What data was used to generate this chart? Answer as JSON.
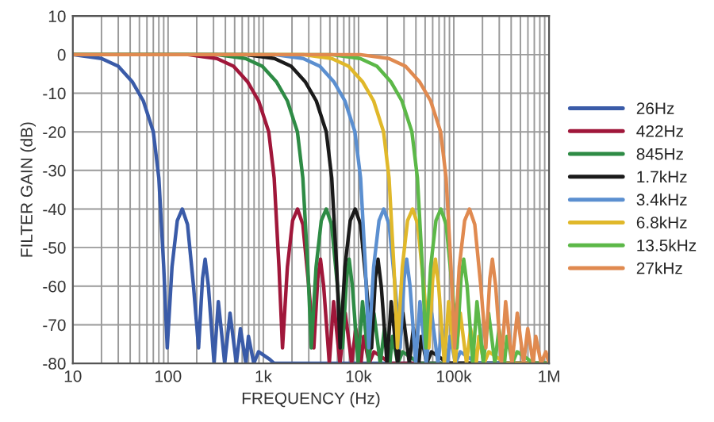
{
  "chart_data": {
    "type": "line",
    "xlabel": "FREQUENCY (Hz)",
    "ylabel": "FILTER GAIN (dB)",
    "log": "x",
    "grid": true,
    "legend": "right",
    "marker": "none",
    "line_style": "solid",
    "xlim": [
      10,
      1000000
    ],
    "xticks": [
      10,
      100,
      {
        "value": 1000,
        "label": "1k"
      },
      {
        "value": 10000,
        "label": "10k"
      },
      {
        "value": 100000,
        "label": "100k"
      },
      {
        "value": 1000000,
        "label": "1M"
      }
    ],
    "ylim": [
      -80,
      10
    ],
    "yticks": [
      -80,
      -70,
      -60,
      -50,
      -40,
      -30,
      -20,
      -10,
      0,
      10
    ],
    "series": [
      {
        "name": "26Hz",
        "color": "#3a5ba8",
        "x": [
          10,
          20,
          30,
          42,
          55,
          70,
          80,
          90,
          98,
          110,
          125,
          141,
          160,
          185,
          209,
          230,
          245,
          265,
          304,
          337,
          393,
          447,
          521,
          575,
          656,
          698,
          794,
          891,
          1170,
          1300,
          1000000
        ],
        "values": [
          0,
          -1,
          -3,
          -7,
          -12,
          -20,
          -32,
          -55,
          -76,
          -55,
          -43,
          -40,
          -44,
          -60,
          -76,
          -58,
          -53,
          -60,
          -80,
          -64,
          -80,
          -67,
          -80,
          -71,
          -80,
          -73,
          -80,
          -77,
          -79,
          -80,
          -80
        ]
      },
      {
        "name": "422Hz",
        "color": "#a0173a",
        "x": [
          10,
          162,
          325,
          487,
          682,
          893,
          1140,
          1300,
          1460,
          1590,
          1790,
          2030,
          2290,
          2600,
          3000,
          3390,
          3730,
          3980,
          4300,
          4930,
          5470,
          6380,
          7250,
          8460,
          9330,
          10600,
          11300,
          12900,
          14500,
          19000,
          21100,
          1000000
        ],
        "values": [
          0,
          0,
          -1,
          -3,
          -7,
          -12,
          -20,
          -32,
          -55,
          -76,
          -55,
          -43,
          -40,
          -44,
          -60,
          -76,
          -58,
          -53,
          -60,
          -80,
          -64,
          -80,
          -67,
          -80,
          -71,
          -80,
          -73,
          -80,
          -77,
          -79,
          -80,
          -80
        ]
      },
      {
        "name": "845Hz",
        "color": "#2e8b45",
        "x": [
          10,
          325,
          650,
          975,
          1370,
          1790,
          2280,
          2600,
          2930,
          3190,
          3580,
          4060,
          4580,
          5200,
          6010,
          6790,
          7480,
          7960,
          8610,
          9880,
          11000,
          12800,
          14500,
          16900,
          18700,
          21300,
          22700,
          25800,
          29000,
          38000,
          42300,
          1000000
        ],
        "values": [
          0,
          0,
          -1,
          -3,
          -7,
          -12,
          -20,
          -32,
          -55,
          -76,
          -55,
          -43,
          -40,
          -44,
          -60,
          -76,
          -58,
          -53,
          -60,
          -80,
          -64,
          -80,
          -67,
          -80,
          -71,
          -80,
          -73,
          -80,
          -77,
          -79,
          -80,
          -80
        ]
      },
      {
        "name": "1.7kHz",
        "color": "#1a1a1a",
        "x": [
          10,
          654,
          1310,
          1960,
          2750,
          3600,
          4580,
          5230,
          5890,
          6410,
          7190,
          8180,
          9220,
          10500,
          12100,
          13700,
          15000,
          16000,
          17300,
          19900,
          22000,
          25700,
          29200,
          34100,
          37600,
          42900,
          45600,
          51900,
          58300,
          76500,
          85000,
          1000000
        ],
        "values": [
          0,
          0,
          -1,
          -3,
          -7,
          -12,
          -20,
          -32,
          -55,
          -76,
          -55,
          -43,
          -40,
          -44,
          -60,
          -76,
          -58,
          -53,
          -60,
          -80,
          -64,
          -80,
          -67,
          -80,
          -71,
          -80,
          -73,
          -80,
          -77,
          -79,
          -80,
          -80
        ]
      },
      {
        "name": "3.4kHz",
        "color": "#5b8fd0",
        "x": [
          10,
          1310,
          2620,
          3920,
          5490,
          7190,
          9160,
          10500,
          11800,
          12800,
          14400,
          16400,
          18400,
          20900,
          24200,
          27300,
          30100,
          32000,
          34700,
          39800,
          44100,
          51400,
          58500,
          68100,
          75200,
          85800,
          91300,
          104000,
          117000,
          153000,
          170000,
          1000000
        ],
        "values": [
          0,
          0,
          -1,
          -3,
          -7,
          -12,
          -20,
          -32,
          -55,
          -76,
          -55,
          -43,
          -40,
          -44,
          -60,
          -76,
          -58,
          -53,
          -60,
          -80,
          -64,
          -80,
          -67,
          -80,
          -71,
          -80,
          -73,
          -80,
          -77,
          -79,
          -80,
          -80
        ]
      },
      {
        "name": "6.8kHz",
        "color": "#e0b82a",
        "x": [
          10,
          2620,
          5230,
          7850,
          11000,
          14400,
          18300,
          20900,
          23500,
          25600,
          28800,
          32700,
          36900,
          41800,
          48400,
          54700,
          60100,
          64100,
          69300,
          79500,
          88100,
          103000,
          117000,
          136000,
          150000,
          172000,
          183000,
          208000,
          233000,
          306000,
          340000,
          1000000
        ],
        "values": [
          0,
          0,
          -1,
          -3,
          -7,
          -12,
          -20,
          -32,
          -55,
          -76,
          -55,
          -43,
          -40,
          -44,
          -60,
          -76,
          -58,
          -53,
          -60,
          -80,
          -64,
          -80,
          -67,
          -80,
          -71,
          -80,
          -73,
          -80,
          -77,
          -79,
          -80,
          -80
        ]
      },
      {
        "name": "13.5kHz",
        "color": "#5cb848",
        "x": [
          10,
          5190,
          10400,
          15600,
          21800,
          28500,
          36300,
          41500,
          46700,
          50900,
          57100,
          64900,
          73200,
          83000,
          96000,
          108000,
          119000,
          127000,
          138000,
          158000,
          175000,
          204000,
          232000,
          270000,
          298000,
          340000,
          362000,
          412000,
          462000,
          607000,
          675000,
          1000000
        ],
        "values": [
          0,
          0,
          -1,
          -3,
          -7,
          -12,
          -20,
          -32,
          -55,
          -76,
          -55,
          -43,
          -40,
          -44,
          -60,
          -76,
          -58,
          -53,
          -60,
          -80,
          -64,
          -80,
          -67,
          -80,
          -71,
          -80,
          -73,
          -80,
          -77,
          -79,
          -80,
          -80
        ]
      },
      {
        "name": "27kHz",
        "color": "#e08a50",
        "x": [
          10,
          10400,
          20800,
          31100,
          43600,
          57100,
          72700,
          83000,
          93400,
          102000,
          114000,
          130000,
          146000,
          166000,
          192000,
          217000,
          239000,
          254000,
          275000,
          316000,
          350000,
          408000,
          464000,
          541000,
          597000,
          681000,
          725000,
          824000,
          925000,
          1000000
        ],
        "values": [
          0,
          0,
          -1,
          -3,
          -7,
          -12,
          -20,
          -32,
          -55,
          -76,
          -55,
          -43,
          -40,
          -44,
          -60,
          -76,
          -58,
          -53,
          -60,
          -80,
          -64,
          -80,
          -67,
          -80,
          -71,
          -80,
          -73,
          -80,
          -77,
          -80
        ]
      }
    ]
  }
}
